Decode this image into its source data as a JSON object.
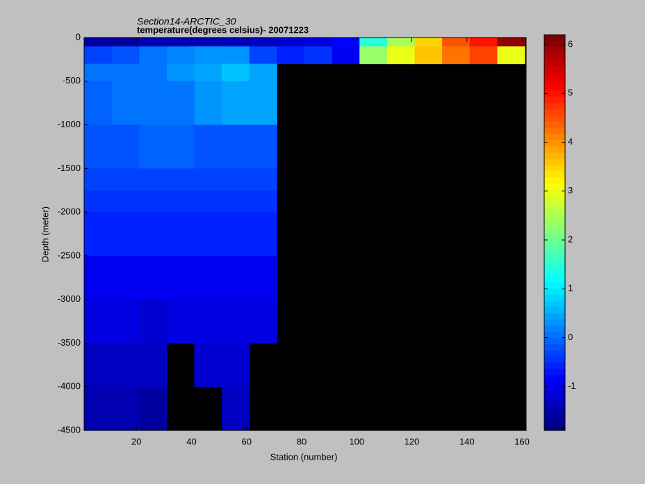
{
  "chart_data": {
    "type": "heatmap",
    "title": "Section14-ARCTIC_30",
    "subtitle": "temperature(degrees  celsius)- 20071223",
    "x_label": "Station (number)",
    "y_label": "Depth (meter)",
    "colormap": "jet",
    "missing_color": "#000000",
    "xlim": [
      1,
      161.5
    ],
    "ylim": [
      -4500,
      0
    ],
    "xticks": [
      20,
      40,
      60,
      80,
      100,
      120,
      140,
      160
    ],
    "yticks": [
      0,
      -500,
      -1000,
      -1500,
      -2000,
      -2500,
      -3000,
      -3500,
      -4000,
      -4500
    ],
    "x_edges": [
      1,
      11,
      21,
      31,
      41,
      51,
      61,
      71,
      81,
      91,
      101,
      111,
      121,
      131,
      141,
      151,
      161
    ],
    "y_edges": [
      0,
      -100,
      -300,
      -500,
      -1000,
      -1500,
      -1750,
      -2000,
      -2500,
      -3000,
      -3500,
      -4000,
      -4500
    ],
    "values": [
      [
        -1.6,
        -1.6,
        -1.5,
        -1.4,
        -1.4,
        -1.3,
        -1.3,
        -1.2,
        -1.1,
        -0.8,
        1.5,
        2.5,
        3.5,
        4.5,
        5,
        6
      ],
      [
        -0.3,
        -0.2,
        0,
        0.2,
        0.3,
        0.3,
        -0.3,
        -0.6,
        -0.5,
        -1.0,
        2.3,
        3,
        3.6,
        4.2,
        4.6,
        3
      ],
      [
        0,
        0,
        0.1,
        0.3,
        0.5,
        0.7,
        0.4,
        null,
        null,
        null,
        null,
        null,
        null,
        null,
        null,
        null
      ],
      [
        -0.1,
        0,
        0,
        0.1,
        0.3,
        0.5,
        0.4,
        null,
        null,
        null,
        null,
        null,
        null,
        null,
        null,
        null
      ],
      [
        -0.2,
        -0.2,
        -0.1,
        -0.1,
        -0.2,
        -0.2,
        -0.2,
        null,
        null,
        null,
        null,
        null,
        null,
        null,
        null,
        null
      ],
      [
        -0.3,
        -0.3,
        -0.3,
        -0.3,
        -0.3,
        -0.3,
        -0.3,
        null,
        null,
        null,
        null,
        null,
        null,
        null,
        null,
        null
      ],
      [
        -0.5,
        -0.5,
        -0.5,
        -0.5,
        -0.5,
        -0.5,
        -0.5,
        null,
        null,
        null,
        null,
        null,
        null,
        null,
        null,
        null
      ],
      [
        -0.6,
        -0.6,
        -0.6,
        -0.6,
        -0.6,
        -0.6,
        -0.6,
        null,
        null,
        null,
        null,
        null,
        null,
        null,
        null,
        null
      ],
      [
        -0.9,
        -0.9,
        -0.9,
        -1.0,
        -1.0,
        -1.0,
        -0.9,
        null,
        null,
        null,
        null,
        null,
        null,
        null,
        null,
        null
      ],
      [
        -1.1,
        -1.1,
        -1.2,
        -1.1,
        -1.1,
        -1.1,
        -1.1,
        null,
        null,
        null,
        null,
        null,
        null,
        null,
        null,
        null
      ],
      [
        -1.3,
        -1.3,
        -1.3,
        null,
        -1.2,
        -1.2,
        null,
        null,
        null,
        null,
        null,
        null,
        null,
        null,
        null,
        null
      ],
      [
        -1.5,
        -1.5,
        -1.6,
        null,
        null,
        -1.3,
        null,
        null,
        null,
        null,
        null,
        null,
        null,
        null,
        null,
        null
      ]
    ],
    "colorbar": {
      "lim": [
        -1.9,
        6.2
      ],
      "ticks": [
        -1,
        0,
        1,
        2,
        3,
        4,
        5,
        6
      ]
    }
  }
}
